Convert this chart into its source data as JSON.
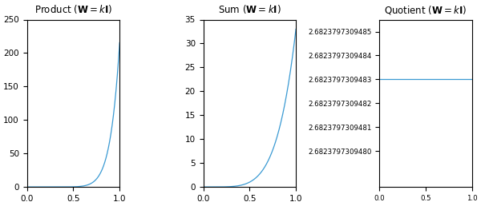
{
  "line_color": "#3a9ad3",
  "figsize": [
    6.0,
    2.58
  ],
  "dpi": 100,
  "product_ylim": [
    0,
    250
  ],
  "product_yticks": [
    0,
    50,
    100,
    150,
    200,
    250
  ],
  "sum_ylim": [
    0,
    35
  ],
  "sum_yticks": [
    0,
    5,
    10,
    15,
    20,
    25,
    30,
    35
  ],
  "quotient_yticks": [
    2.682379730948,
    2.6823797309481,
    2.6823797309482,
    2.6823797309483,
    2.6823797309484,
    2.6823797309485
  ],
  "quotient_ylim": [
    2.68237973094785,
    2.68237973094855
  ],
  "quotient_line_value": 2.6823797309483,
  "x_ticks": [
    0,
    0.5,
    1
  ],
  "xlim": [
    0,
    1
  ],
  "n_points": 1000,
  "power_n": 5.04,
  "sum_at_1": 33.0,
  "quotient_q": 2.6823797309483
}
